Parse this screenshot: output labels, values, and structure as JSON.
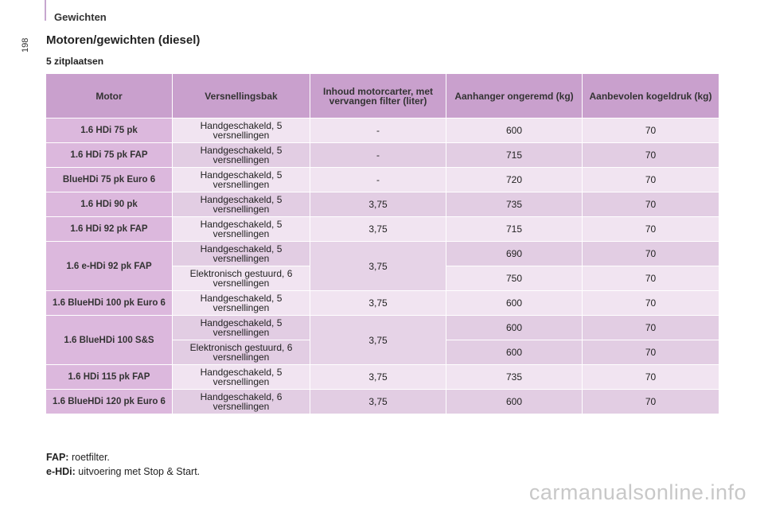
{
  "page": {
    "number": "198",
    "section": "Gewichten",
    "title": "Motoren/gewichten (diesel)",
    "subtitle": "5 zitplaatsen"
  },
  "table": {
    "headers": [
      "Motor",
      "Versnellingsbak",
      "Inhoud motorcarter, met vervangen filter (liter)",
      "Aanhanger ongeremd (kg)",
      "Aanbevolen kogeldruk (kg)"
    ],
    "groups": [
      {
        "motor": "1.6 HDi 75 pk",
        "oil": "-",
        "rows": [
          {
            "gearbox": "Handgeschakeld, 5 versnellingen",
            "trailer": "600",
            "ball": "70"
          }
        ]
      },
      {
        "motor": "1.6 HDi 75 pk FAP",
        "oil": "-",
        "rows": [
          {
            "gearbox": "Handgeschakeld, 5 versnellingen",
            "trailer": "715",
            "ball": "70"
          }
        ]
      },
      {
        "motor": "BlueHDi 75 pk Euro 6",
        "oil": "-",
        "rows": [
          {
            "gearbox": "Handgeschakeld, 5 versnellingen",
            "trailer": "720",
            "ball": "70"
          }
        ]
      },
      {
        "motor": "1.6 HDi 90 pk",
        "oil": "3,75",
        "rows": [
          {
            "gearbox": "Handgeschakeld, 5 versnellingen",
            "trailer": "735",
            "ball": "70"
          }
        ]
      },
      {
        "motor": "1.6 HDi 92 pk FAP",
        "oil": "3,75",
        "rows": [
          {
            "gearbox": "Handgeschakeld, 5 versnellingen",
            "trailer": "715",
            "ball": "70"
          }
        ]
      },
      {
        "motor": "1.6 e-HDi 92 pk FAP",
        "oil": "3,75",
        "rows": [
          {
            "gearbox": "Handgeschakeld, 5 versnellingen",
            "trailer": "690",
            "ball": "70"
          },
          {
            "gearbox": "Elektronisch gestuurd, 6 versnellingen",
            "trailer": "750",
            "ball": "70"
          }
        ]
      },
      {
        "motor": "1.6 BlueHDi 100 pk Euro 6",
        "oil": "3,75",
        "rows": [
          {
            "gearbox": "Handgeschakeld, 5 versnellingen",
            "trailer": "600",
            "ball": "70"
          }
        ]
      },
      {
        "motor": "1.6 BlueHDi 100 S&S",
        "oil": "3,75",
        "rows": [
          {
            "gearbox": "Handgeschakeld, 5 versnellingen",
            "trailer": "600",
            "ball": "70"
          },
          {
            "gearbox": "Elektronisch gestuurd, 6 versnellingen",
            "trailer": "600",
            "ball": "70"
          }
        ]
      },
      {
        "motor": "1.6 HDi 115 pk FAP",
        "oil": "3,75",
        "rows": [
          {
            "gearbox": "Handgeschakeld, 5 versnellingen",
            "trailer": "735",
            "ball": "70"
          }
        ]
      },
      {
        "motor": "1.6 BlueHDi 120 pk Euro 6",
        "oil": "3,75",
        "rows": [
          {
            "gearbox": "Handgeschakeld, 6 versnellingen",
            "trailer": "600",
            "ball": "70"
          }
        ]
      }
    ]
  },
  "footnotes": [
    {
      "term": "FAP:",
      "text": "roetfilter."
    },
    {
      "term": "e-HDi:",
      "text": "uitvoering met Stop & Start."
    }
  ],
  "watermark": "carmanualsonline.info",
  "colors": {
    "header": "#c9a0cd",
    "motor_cell": "#dcb8dd",
    "row_light": "#f1e4f1",
    "row_dark": "#e2cde3"
  }
}
